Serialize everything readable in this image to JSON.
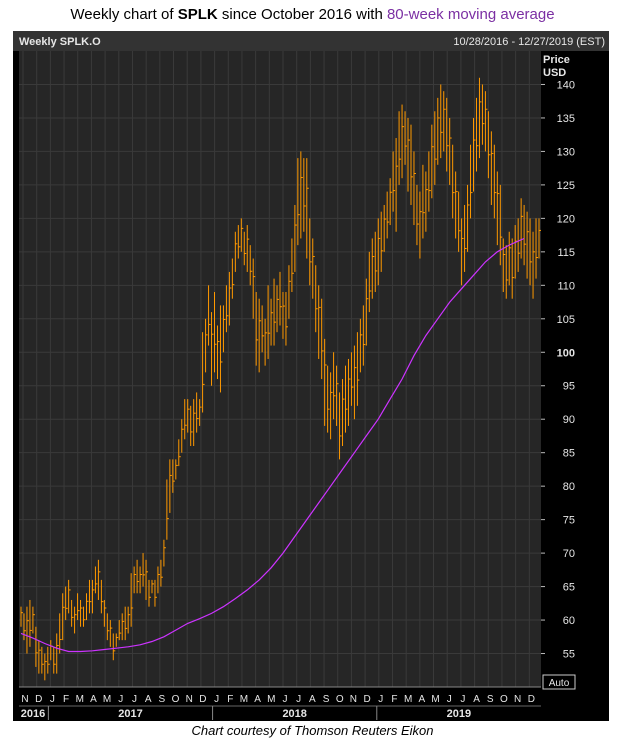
{
  "title": {
    "prefix": "Weekly chart of ",
    "ticker": "SPLK",
    "middle": " since October 2016 with ",
    "ma_label": "80-week moving average"
  },
  "header": {
    "left": "Weekly SPLK.O",
    "right": "10/28/2016 - 12/27/2019 (EST)"
  },
  "axis": {
    "price_label": "Price",
    "unit_label": "USD",
    "auto_label": "Auto"
  },
  "credit": "Chart courtesy of Thomson Reuters Eikon",
  "colors": {
    "price": "#ff9900",
    "ma": "#cc33ff",
    "grid": "#3a3a3a",
    "plot_bg": "#262626"
  },
  "chart_data": {
    "type": "line",
    "title": "Weekly chart of SPLK since October 2016 with 80-week moving average",
    "ylabel": "Price USD",
    "ylim": [
      50,
      145
    ],
    "yticks": [
      55,
      60,
      65,
      70,
      75,
      80,
      85,
      90,
      95,
      100,
      105,
      110,
      115,
      120,
      125,
      130,
      135,
      140
    ],
    "month_labels": [
      "N",
      "D",
      "J",
      "F",
      "M",
      "A",
      "M",
      "J",
      "J",
      "A",
      "S",
      "O",
      "N",
      "D",
      "J",
      "F",
      "M",
      "A",
      "M",
      "J",
      "J",
      "A",
      "S",
      "O",
      "N",
      "D",
      "J",
      "F",
      "M",
      "A",
      "M",
      "J",
      "J",
      "A",
      "S",
      "O",
      "N",
      "D"
    ],
    "year_labels": [
      "2016",
      "2017",
      "2018",
      "2019"
    ],
    "series": [
      {
        "name": "SPLK.O weekly price",
        "style": "hlc-bars",
        "x_start": "2016-10-28",
        "x_end": "2019-12-27",
        "values": [
          [
            59,
            62
          ],
          [
            57,
            61
          ],
          [
            55,
            62
          ],
          [
            56,
            63
          ],
          [
            58,
            62
          ],
          [
            53,
            59
          ],
          [
            52,
            57
          ],
          [
            52,
            56
          ],
          [
            51,
            55
          ],
          [
            52,
            56
          ],
          [
            54,
            57
          ],
          [
            52,
            56
          ],
          [
            52,
            58
          ],
          [
            55,
            61
          ],
          [
            57,
            64
          ],
          [
            60,
            65
          ],
          [
            61,
            66
          ],
          [
            59,
            63
          ],
          [
            58,
            62
          ],
          [
            60,
            64
          ],
          [
            59,
            63
          ],
          [
            59,
            62
          ],
          [
            60,
            64
          ],
          [
            61,
            66
          ],
          [
            61,
            66
          ],
          [
            64,
            68
          ],
          [
            63,
            69
          ],
          [
            61,
            66
          ],
          [
            59,
            63
          ],
          [
            57,
            61
          ],
          [
            56,
            60
          ],
          [
            54,
            58
          ],
          [
            56,
            58
          ],
          [
            57,
            60
          ],
          [
            57,
            61
          ],
          [
            57,
            62
          ],
          [
            58,
            62
          ],
          [
            59,
            67
          ],
          [
            64,
            68
          ],
          [
            64,
            69
          ],
          [
            64,
            68
          ],
          [
            65,
            70
          ],
          [
            63,
            69
          ],
          [
            62,
            66
          ],
          [
            64,
            66
          ],
          [
            62,
            66
          ],
          [
            64,
            68
          ],
          [
            65,
            69
          ],
          [
            68,
            72
          ],
          [
            72,
            81
          ],
          [
            76,
            84
          ],
          [
            79,
            84
          ],
          [
            81,
            84
          ],
          [
            83,
            87
          ],
          [
            85,
            90
          ],
          [
            87,
            93
          ],
          [
            88,
            93
          ],
          [
            86,
            92
          ],
          [
            86,
            93
          ],
          [
            88,
            94
          ],
          [
            89,
            93
          ],
          [
            91,
            103
          ],
          [
            97,
            105
          ],
          [
            101,
            110
          ],
          [
            95,
            106
          ],
          [
            97,
            109
          ],
          [
            96,
            104
          ],
          [
            94,
            107
          ],
          [
            100,
            107
          ],
          [
            103,
            110
          ],
          [
            104,
            112
          ],
          [
            108,
            114
          ],
          [
            112,
            118
          ],
          [
            114,
            119
          ],
          [
            115,
            120
          ],
          [
            113,
            118
          ],
          [
            112,
            119
          ],
          [
            110,
            116
          ],
          [
            105,
            114
          ],
          [
            98,
            109
          ],
          [
            97,
            108
          ],
          [
            100,
            107
          ],
          [
            98,
            105
          ],
          [
            99,
            110
          ],
          [
            101,
            108
          ],
          [
            101,
            111
          ],
          [
            103,
            110
          ],
          [
            104,
            112
          ],
          [
            102,
            109
          ],
          [
            101,
            109
          ],
          [
            105,
            113
          ],
          [
            109,
            117
          ],
          [
            112,
            122
          ],
          [
            116,
            129
          ],
          [
            117,
            130
          ],
          [
            118,
            129
          ],
          [
            114,
            129
          ],
          [
            110,
            120
          ],
          [
            108,
            117
          ],
          [
            103,
            113
          ],
          [
            99,
            110
          ],
          [
            96,
            108
          ],
          [
            89,
            102
          ],
          [
            88,
            98
          ],
          [
            87,
            97
          ],
          [
            90,
            100
          ],
          [
            89,
            98
          ],
          [
            84,
            94
          ],
          [
            86,
            96
          ],
          [
            88,
            98
          ],
          [
            89,
            99
          ],
          [
            92,
            100
          ],
          [
            90,
            101
          ],
          [
            92,
            103
          ],
          [
            97,
            105
          ],
          [
            98,
            107
          ],
          [
            101,
            111
          ],
          [
            106,
            115
          ],
          [
            108,
            117
          ],
          [
            109,
            118
          ],
          [
            110,
            120
          ],
          [
            112,
            121
          ],
          [
            115,
            122
          ],
          [
            117,
            124
          ],
          [
            119,
            126
          ],
          [
            121,
            130
          ],
          [
            118,
            132
          ],
          [
            125,
            136
          ],
          [
            126,
            137
          ],
          [
            128,
            136
          ],
          [
            124,
            135
          ],
          [
            122,
            134
          ],
          [
            119,
            130
          ],
          [
            116,
            125
          ],
          [
            114,
            124
          ],
          [
            117,
            128
          ],
          [
            118,
            127
          ],
          [
            121,
            130
          ],
          [
            123,
            134
          ],
          [
            125,
            136
          ],
          [
            128,
            138
          ],
          [
            129,
            140
          ],
          [
            130,
            139
          ],
          [
            127,
            138
          ],
          [
            125,
            135
          ],
          [
            120,
            131
          ],
          [
            117,
            127
          ],
          [
            115,
            124
          ],
          [
            110,
            120
          ],
          [
            112,
            122
          ],
          [
            115,
            125
          ],
          [
            120,
            131
          ],
          [
            124,
            135
          ],
          [
            127,
            138
          ],
          [
            129,
            141
          ],
          [
            131,
            140
          ],
          [
            130,
            139
          ],
          [
            126,
            136
          ],
          [
            122,
            133
          ],
          [
            120,
            131
          ],
          [
            116,
            127
          ],
          [
            113,
            125
          ],
          [
            109,
            117
          ],
          [
            108,
            116
          ],
          [
            110,
            118
          ],
          [
            108,
            117
          ],
          [
            111,
            119
          ],
          [
            112,
            120
          ],
          [
            114,
            123
          ],
          [
            113,
            122
          ],
          [
            111,
            121
          ],
          [
            110,
            120
          ],
          [
            108,
            118
          ],
          [
            111,
            120
          ],
          [
            114,
            120
          ]
        ]
      },
      {
        "name": "80-week moving average",
        "style": "line",
        "points": [
          [
            0,
            58.0
          ],
          [
            4,
            57.3
          ],
          [
            8,
            56.5
          ],
          [
            12,
            55.8
          ],
          [
            16,
            55.3
          ],
          [
            20,
            55.3
          ],
          [
            24,
            55.4
          ],
          [
            28,
            55.6
          ],
          [
            32,
            55.8
          ],
          [
            36,
            56.0
          ],
          [
            40,
            56.3
          ],
          [
            44,
            56.8
          ],
          [
            48,
            57.5
          ],
          [
            52,
            58.5
          ],
          [
            56,
            59.5
          ],
          [
            60,
            60.2
          ],
          [
            64,
            61.0
          ],
          [
            68,
            62.0
          ],
          [
            72,
            63.2
          ],
          [
            76,
            64.5
          ],
          [
            80,
            66.0
          ],
          [
            84,
            67.8
          ],
          [
            88,
            70.0
          ],
          [
            92,
            72.5
          ],
          [
            96,
            75.0
          ],
          [
            100,
            77.5
          ],
          [
            104,
            80.0
          ],
          [
            108,
            82.5
          ],
          [
            112,
            85.0
          ],
          [
            116,
            87.5
          ],
          [
            120,
            90.0
          ],
          [
            124,
            93.0
          ],
          [
            128,
            96.0
          ],
          [
            132,
            99.5
          ],
          [
            136,
            102.5
          ],
          [
            140,
            105.0
          ],
          [
            144,
            107.5
          ],
          [
            148,
            109.5
          ],
          [
            152,
            111.5
          ],
          [
            156,
            113.5
          ],
          [
            160,
            115.0
          ],
          [
            164,
            116.0
          ],
          [
            168,
            116.8
          ],
          [
            169,
            117.0
          ]
        ]
      }
    ]
  }
}
